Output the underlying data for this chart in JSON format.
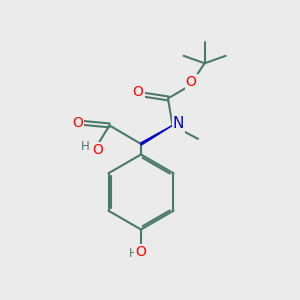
{
  "background_color": "#ebebeb",
  "bond_color": "#4a7a6a",
  "bond_width": 1.5,
  "atom_colors": {
    "O": "#ff0000",
    "N": "#0000cc",
    "C": "#4a7a6a",
    "H": "#4a7a6a"
  },
  "font_size_atoms": 10,
  "font_size_small": 8.5,
  "figsize": [
    3.0,
    3.0
  ],
  "dpi": 100
}
